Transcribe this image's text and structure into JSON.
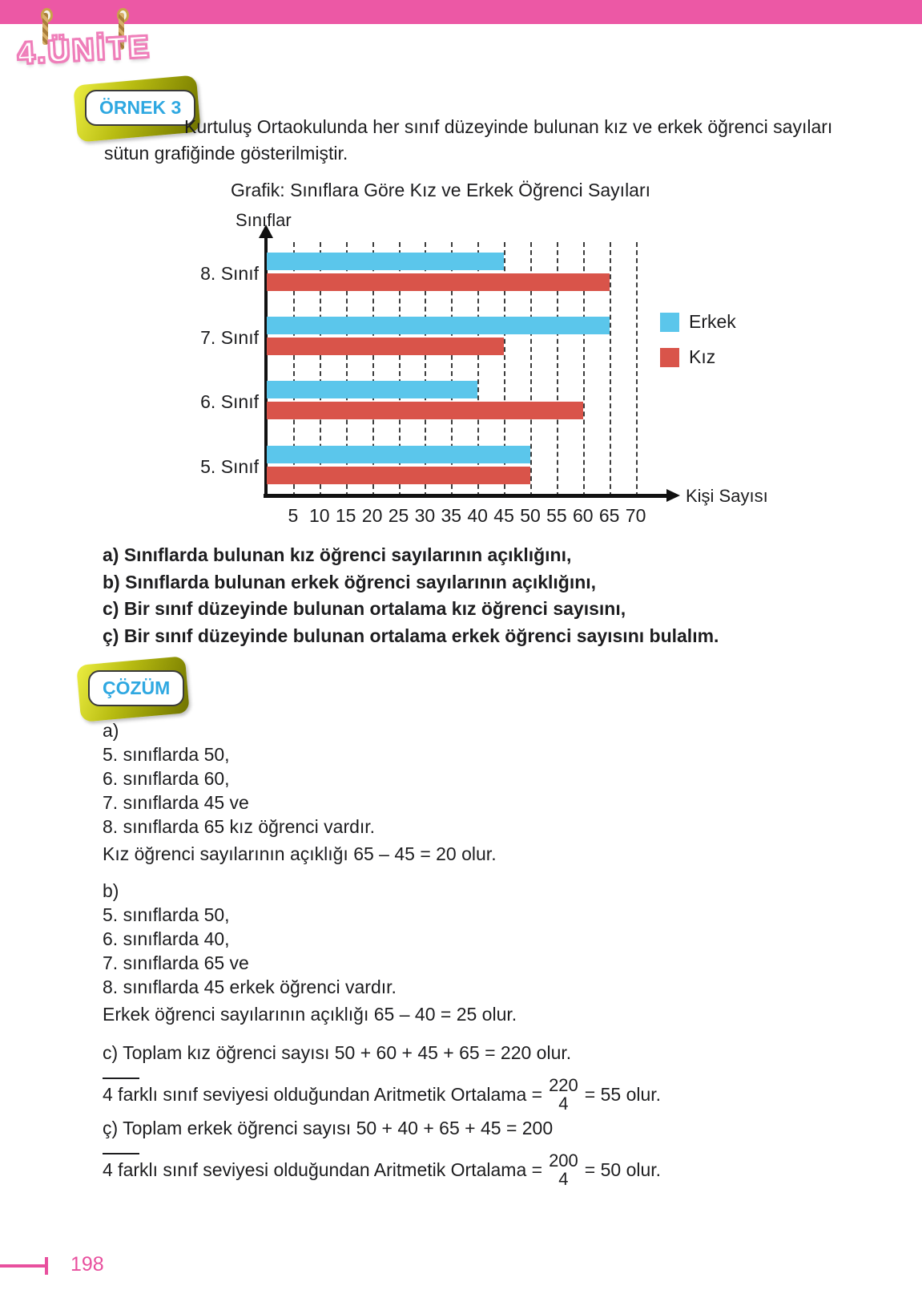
{
  "page": {
    "unit_badge": "4.ÜNİTE",
    "page_number": "198"
  },
  "example": {
    "badge_label": "ÖRNEK 3",
    "intro_line1": "Kurtuluş Ortaokulunda her sınıf düzeyinde bulunan kız ve erkek öğrenci sayıları",
    "intro_line2": "sütun grafiğinde gösterilmiştir."
  },
  "questions": [
    "a) Sınıflarda bulunan kız öğrenci sayılarının açıklığını,",
    "b) Sınıflarda bulunan erkek öğrenci sayılarının açıklığını,",
    "c) Bir sınıf düzeyinde bulunan ortalama kız öğrenci sayısını,",
    "ç) Bir sınıf düzeyinde bulunan ortalama erkek öğrenci sayısını bulalım."
  ],
  "solution": {
    "badge_label": "ÇÖZÜM",
    "part_a": {
      "label": "a)",
      "lines": [
        "5. sınıflarda 50,",
        "6. sınıflarda 60,",
        "7. sınıflarda 45 ve",
        "8. sınıflarda 65 kız öğrenci vardır."
      ],
      "result": "Kız öğrenci sayılarının açıklığı 65 – 45 = 20 olur."
    },
    "part_b": {
      "label": "b)",
      "lines": [
        "5. sınıflarda 50,",
        "6. sınıflarda 40,",
        "7. sınıflarda 65 ve",
        "8. sınıflarda 45 erkek öğrenci vardır."
      ],
      "result": "Erkek öğrenci sayılarının açıklığı 65 – 40 = 25 olur."
    },
    "part_c": {
      "line1": "c) Toplam kız öğrenci sayısı 50 + 60 + 45 + 65 = 220 olur.",
      "line2_prefix": "4 farklı sınıf seviyesi olduğundan  Aritmetik Ortalama =",
      "fraction_numerator": "220",
      "fraction_denominator": "4",
      "line2_suffix": "= 55  olur."
    },
    "part_cc": {
      "line1": "ç) Toplam erkek öğrenci sayısı 50 + 40 + 65 + 45 = 200",
      "line2_prefix": "4 farklı sınıf seviyesi olduğundan  Aritmetik Ortalama =",
      "fraction_numerator": "200",
      "fraction_denominator": "4",
      "line2_suffix": "= 50  olur."
    }
  },
  "chart_data": {
    "type": "bar",
    "orientation": "horizontal",
    "title": "Grafik: Sınıflara Göre Kız ve Erkek Öğrenci Sayıları",
    "ylabel": "Sınıflar",
    "xlabel": "Kişi Sayısı",
    "categories": [
      "8. Sınıf",
      "7. Sınıf",
      "6. Sınıf",
      "5. Sınıf"
    ],
    "series": [
      {
        "name": "Erkek",
        "color": "#5bc6eb",
        "values": [
          45,
          65,
          40,
          50
        ]
      },
      {
        "name": "Kız",
        "color": "#d9544a",
        "values": [
          65,
          45,
          60,
          50
        ]
      }
    ],
    "x_ticks": [
      5,
      10,
      15,
      20,
      25,
      30,
      35,
      40,
      45,
      50,
      55,
      60,
      65,
      70
    ],
    "xlim": [
      0,
      70
    ],
    "grid": "dashed-vertical",
    "legend_position": "right"
  },
  "colors": {
    "top_bar": "#ec58a5",
    "accent_pink": "#e8509e",
    "badge_text_blue": "#2fa8e1",
    "ribbon_olive": "#b9bd12",
    "erkek_blue": "#5bc6eb",
    "kiz_red": "#d9544a"
  }
}
